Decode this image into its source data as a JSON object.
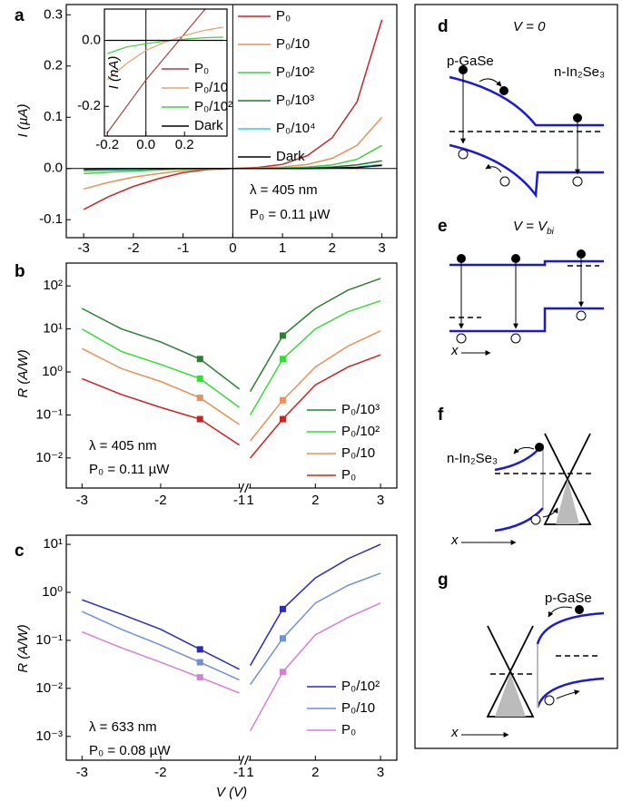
{
  "chart_data": [
    {
      "type": "line",
      "label": "a",
      "ylabel": "I (µA)",
      "zero_lines": true,
      "x": [
        -3,
        -2.5,
        -2,
        -1.5,
        -1,
        -0.5,
        0,
        0.5,
        1,
        1.5,
        2,
        2.5,
        3
      ],
      "xlim": [
        -3.35,
        3.3
      ],
      "xticks": [
        -3,
        -2,
        -1,
        0,
        1,
        2,
        3
      ],
      "ylim": [
        -0.135,
        0.32
      ],
      "yticks": [
        -0.1,
        {
          "value": 0,
          "label": "0.0"
        },
        0.1,
        0.2,
        0.3
      ],
      "series": [
        {
          "name": "P₀",
          "color": "#c62828",
          "values": [
            -0.08,
            -0.055,
            -0.035,
            -0.02,
            -0.008,
            -0.002,
            0,
            0.002,
            0.008,
            0.025,
            0.06,
            0.13,
            0.29
          ]
        },
        {
          "name": "P₀/10",
          "color": "#e8915a",
          "values": [
            -0.04,
            -0.027,
            -0.017,
            -0.01,
            -0.004,
            -0.001,
            0,
            0.001,
            0.003,
            0.008,
            0.02,
            0.045,
            0.1
          ]
        },
        {
          "name": "P₀/10²",
          "color": "#3ecf3e",
          "values": [
            -0.01,
            -0.007,
            -0.005,
            -0.003,
            -0.001,
            0,
            0,
            0,
            0.001,
            0.003,
            0.007,
            0.018,
            0.045
          ]
        },
        {
          "name": "P₀/10³",
          "color": "#1f7a2a",
          "values": [
            -0.004,
            -0.003,
            -0.002,
            -0.001,
            0,
            0,
            0,
            0,
            0,
            0.001,
            0.003,
            0.007,
            0.015
          ]
        },
        {
          "name": "P₀/10⁴",
          "color": "#22d3e0",
          "values": [
            -0.002,
            -0.001,
            -0.001,
            0,
            0,
            0,
            0,
            0,
            0,
            0,
            0.001,
            0.003,
            0.008
          ]
        },
        {
          "name": "Dark",
          "color": "#000000",
          "values": [
            -0.001,
            0,
            0,
            0,
            0,
            0,
            0,
            0,
            0,
            0,
            0.001,
            0.002,
            0.006
          ]
        }
      ],
      "annotations": [
        "λ = 405 nm",
        "P₀ = 0.11 µW"
      ]
    },
    {
      "type": "line",
      "ylabel": "I (nA)",
      "zero_lines": true,
      "x": [
        -0.2,
        -0.1,
        0,
        0.1,
        0.2,
        0.3,
        0.4
      ],
      "xlim": [
        -0.215,
        0.42
      ],
      "xticks": [
        -0.2,
        {
          "value": 0,
          "label": "0.0"
        },
        0.2
      ],
      "ylim": [
        -0.29,
        0.095
      ],
      "yticks": [
        {
          "value": 0,
          "label": "0.0"
        },
        -0.2
      ],
      "series": [
        {
          "name": "P₀",
          "color": "#a0453e",
          "values": [
            -0.28,
            -0.2,
            -0.12,
            -0.05,
            0.02,
            0.09,
            0.15
          ]
        },
        {
          "name": "P₀/10",
          "color": "#e8a070",
          "values": [
            -0.12,
            -0.07,
            -0.03,
            -0.005,
            0.015,
            0.03,
            0.04
          ]
        },
        {
          "name": "P₀/10²",
          "color": "#3ecf3e",
          "values": [
            -0.04,
            -0.02,
            -0.01,
            -0.002,
            0.004,
            0.008,
            0.01
          ]
        },
        {
          "name": "Dark",
          "color": "#000000",
          "values": [
            0,
            0,
            0,
            0,
            0,
            0,
            0
          ]
        }
      ]
    },
    {
      "type": "line",
      "label": "b",
      "ylabel": "R (A/W)",
      "log_y": true,
      "x_break": [
        -1,
        1
      ],
      "markers_at": [
        -1.5,
        1.5
      ],
      "x": [
        -3,
        -2.5,
        -2,
        -1.5,
        -1,
        null,
        1,
        1.5,
        2,
        2.5,
        3
      ],
      "xlim": [
        -3.2,
        3.25
      ],
      "xticks": [
        -3,
        -2,
        -1,
        1,
        2,
        3
      ],
      "ylim": [
        0.002,
        340
      ],
      "yticks": [
        {
          "value": 0.01,
          "label": "10⁻²"
        },
        {
          "value": 0.1,
          "label": "10⁻¹"
        },
        {
          "value": 1,
          "label": "10⁰"
        },
        {
          "value": 10,
          "label": "10¹"
        },
        {
          "value": 100,
          "label": "10²"
        }
      ],
      "series": [
        {
          "name": "P₀/10³",
          "color": "#2e7d32",
          "values": [
            30,
            10,
            5,
            2,
            0.4,
            null,
            0.35,
            7,
            30,
            80,
            150
          ]
        },
        {
          "name": "P₀/10²",
          "color": "#33dd33",
          "values": [
            10,
            3,
            1.5,
            0.7,
            0.15,
            null,
            0.1,
            2,
            10,
            25,
            45
          ]
        },
        {
          "name": "P₀/10",
          "color": "#e8915a",
          "values": [
            3.5,
            1.2,
            0.6,
            0.25,
            0.06,
            null,
            0.025,
            0.22,
            1.3,
            4,
            9
          ]
        },
        {
          "name": "P₀",
          "color": "#cc2222",
          "values": [
            0.7,
            0.3,
            0.15,
            0.08,
            0.02,
            null,
            0.01,
            0.08,
            0.5,
            1.3,
            2.5
          ]
        }
      ],
      "annotations": [
        "λ = 405 nm",
        "P₀ = 0.11 µW"
      ]
    },
    {
      "type": "line",
      "label": "c",
      "ylabel": "R (A/W)",
      "xlabel": "V (V)",
      "log_y": true,
      "x_break": [
        -1,
        1
      ],
      "markers_at": [
        -1.5,
        1.5
      ],
      "x": [
        -3,
        -2.5,
        -2,
        -1.5,
        -1,
        null,
        1,
        1.5,
        2,
        2.5,
        3
      ],
      "xlim": [
        -3.2,
        3.25
      ],
      "xticks": [
        -3,
        -2,
        -1,
        1,
        2,
        3
      ],
      "ylim": [
        0.00032,
        15.5
      ],
      "yticks": [
        {
          "value": 0.001,
          "label": "10⁻³"
        },
        {
          "value": 0.01,
          "label": "10⁻²"
        },
        {
          "value": 0.1,
          "label": "10⁻¹"
        },
        {
          "value": 1,
          "label": "10⁰"
        },
        {
          "value": 10,
          "label": "10¹"
        }
      ],
      "series": [
        {
          "name": "P₀/10²",
          "color": "#2b2bb8",
          "values": [
            0.7,
            0.35,
            0.17,
            0.065,
            0.025,
            null,
            0.03,
            0.45,
            2,
            5,
            10
          ]
        },
        {
          "name": "P₀/10",
          "color": "#6f8fd8",
          "values": [
            0.4,
            0.17,
            0.08,
            0.035,
            0.015,
            null,
            0.012,
            0.11,
            0.6,
            1.4,
            2.5
          ]
        },
        {
          "name": "P₀",
          "color": "#d57fd5",
          "values": [
            0.15,
            0.07,
            0.035,
            0.017,
            0.008,
            null,
            0.0013,
            0.022,
            0.13,
            0.3,
            0.6
          ]
        }
      ],
      "annotations": [
        "λ = 633 nm",
        "P₀ = 0.08 µW"
      ]
    }
  ],
  "diagrams": {
    "d": {
      "label": "d",
      "title": "V = 0",
      "left": "p-GaSe",
      "right": "n-In₂Se₃"
    },
    "e": {
      "label": "e",
      "title": "V = V",
      "title_sub": "bi",
      "axis": "x"
    },
    "f": {
      "label": "f",
      "material": "n-In₂Se₃",
      "axis": "x"
    },
    "g": {
      "label": "g",
      "material": "p-GaSe",
      "axis": "x"
    }
  }
}
